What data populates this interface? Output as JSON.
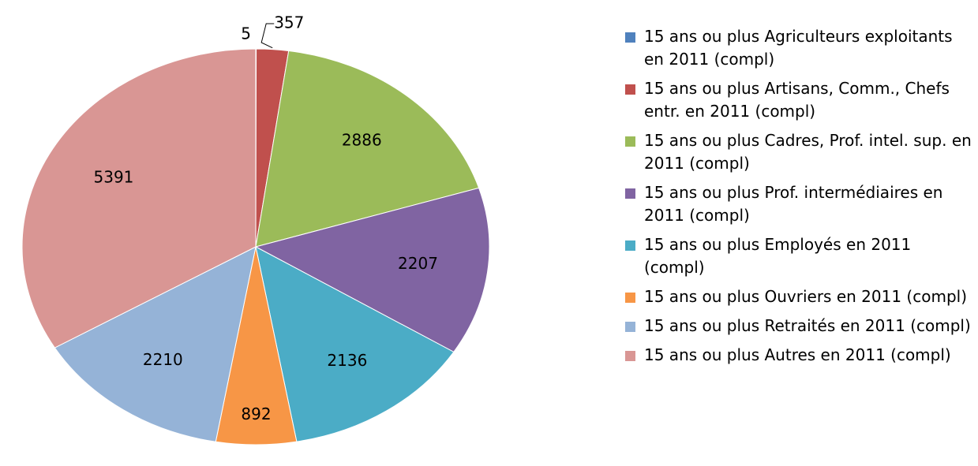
{
  "chart_data": {
    "type": "pie",
    "categories": [
      "15 ans ou plus Agriculteurs exploitants en 2011 (compl)",
      "15 ans ou plus Artisans, Comm., Chefs entr. en 2011 (compl)",
      "15 ans ou plus Cadres, Prof. intel. sup. en 2011 (compl)",
      "15 ans ou plus Prof. intermédiaires en 2011 (compl)",
      "15 ans ou plus Employés en 2011 (compl)",
      "15 ans ou plus Ouvriers en 2011 (compl)",
      "15 ans ou plus Retraités en 2011 (compl)",
      "15 ans ou plus Autres en 2011 (compl)"
    ],
    "values": [
      5,
      357,
      2886,
      2207,
      2136,
      892,
      2210,
      5391
    ],
    "colors": [
      "#4f81bd",
      "#c0504d",
      "#9bbb59",
      "#8064a2",
      "#4bacc6",
      "#f79646",
      "#95b3d7",
      "#d99694"
    ],
    "legend": "right"
  }
}
